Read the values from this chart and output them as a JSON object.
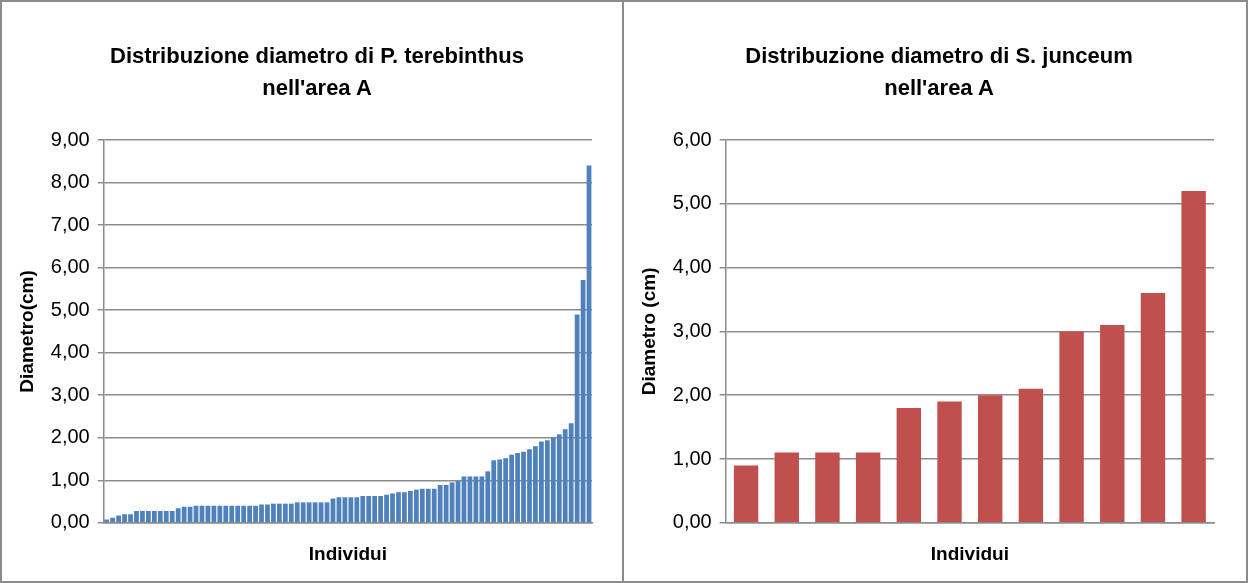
{
  "chart_data": [
    {
      "type": "bar",
      "title": "Distribuzione diametro di P. terebinthus nell'area A",
      "xlabel": "Individui",
      "ylabel": "Diametro(cm)",
      "color": "#4f81bd",
      "categories": [
        null,
        null,
        null,
        null,
        null,
        null,
        null,
        null,
        null,
        null,
        null,
        null,
        null,
        null,
        null,
        null,
        null,
        null,
        null,
        null,
        null,
        null,
        null,
        null,
        null,
        null,
        null,
        null,
        null,
        null,
        null,
        null,
        null,
        null,
        null,
        null,
        null,
        null,
        null,
        null,
        null,
        null,
        null,
        null,
        null,
        null,
        null,
        null,
        null,
        null,
        null,
        null,
        null,
        null,
        null,
        null,
        null,
        null,
        null,
        null,
        null,
        null,
        null,
        null,
        null,
        null,
        null,
        null,
        null,
        null,
        null,
        null,
        null,
        null,
        null,
        null,
        null,
        null,
        null,
        null,
        null,
        null
      ],
      "values": [
        0.08,
        0.12,
        0.17,
        0.2,
        0.2,
        0.28,
        0.28,
        0.28,
        0.28,
        0.28,
        0.28,
        0.28,
        0.34,
        0.38,
        0.38,
        0.4,
        0.4,
        0.4,
        0.4,
        0.4,
        0.4,
        0.4,
        0.4,
        0.4,
        0.4,
        0.4,
        0.43,
        0.43,
        0.45,
        0.45,
        0.45,
        0.45,
        0.48,
        0.48,
        0.48,
        0.48,
        0.48,
        0.48,
        0.57,
        0.6,
        0.6,
        0.6,
        0.6,
        0.63,
        0.63,
        0.63,
        0.63,
        0.66,
        0.69,
        0.72,
        0.72,
        0.75,
        0.78,
        0.8,
        0.8,
        0.8,
        0.89,
        0.89,
        0.95,
        0.98,
        1.09,
        1.09,
        1.09,
        1.09,
        1.21,
        1.47,
        1.49,
        1.52,
        1.6,
        1.64,
        1.67,
        1.73,
        1.8,
        1.91,
        1.94,
        2.0,
        2.08,
        2.2,
        2.34,
        4.9,
        5.71,
        8.4
      ],
      "ylim": [
        0,
        9
      ],
      "yticks": [
        {
          "value": 0,
          "label": "0,00"
        },
        {
          "value": 1,
          "label": "1,00"
        },
        {
          "value": 2,
          "label": "2,00"
        },
        {
          "value": 3,
          "label": "3,00"
        },
        {
          "value": 4,
          "label": "4,00"
        },
        {
          "value": 5,
          "label": "5,00"
        },
        {
          "value": 6,
          "label": "6,00"
        },
        {
          "value": 7,
          "label": "7,00"
        },
        {
          "value": 8,
          "label": "8,00"
        },
        {
          "value": 9,
          "label": "9,00"
        }
      ],
      "grid": "y",
      "legend": false
    },
    {
      "type": "bar",
      "title": "Distribuzione diametro di S. junceum nell'area A",
      "xlabel": "Individui",
      "ylabel": "Diametro (cm)",
      "color": "#c0504d",
      "categories": [
        null,
        null,
        null,
        null,
        null,
        null,
        null,
        null,
        null,
        null,
        null,
        null
      ],
      "values": [
        0.9,
        1.1,
        1.1,
        1.1,
        1.8,
        1.9,
        2.0,
        2.1,
        3.0,
        3.1,
        3.6,
        5.2
      ],
      "ylim": [
        0,
        6
      ],
      "yticks": [
        {
          "value": 0,
          "label": "0,00"
        },
        {
          "value": 1,
          "label": "1,00"
        },
        {
          "value": 2,
          "label": "2,00"
        },
        {
          "value": 3,
          "label": "3,00"
        },
        {
          "value": 4,
          "label": "4,00"
        },
        {
          "value": 5,
          "label": "5,00"
        },
        {
          "value": 6,
          "label": "6,00"
        }
      ],
      "grid": "y",
      "legend": false
    }
  ]
}
